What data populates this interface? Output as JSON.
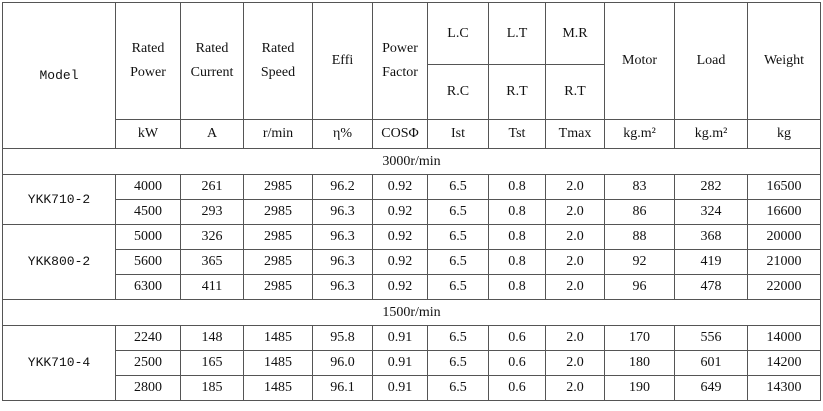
{
  "header": {
    "model": "Model",
    "tall": [
      [
        "Rated",
        "Power"
      ],
      [
        "Rated",
        "Current"
      ],
      [
        "Rated",
        "Speed"
      ],
      [
        "Effi"
      ],
      [
        "Power",
        "Factor"
      ]
    ],
    "split_top": [
      "L.C",
      "L.T",
      "M.R"
    ],
    "split_bottom": [
      "R.C",
      "R.T",
      "R.T"
    ],
    "tall2": [
      "Motor",
      "Load",
      "Weight"
    ],
    "units": [
      "kW",
      "A",
      "r/min",
      "η%",
      "COSΦ",
      "Ist",
      "Tst",
      "Tmax",
      "kg.m²",
      "kg.m²",
      "kg"
    ]
  },
  "sections": [
    {
      "speed": "3000r/min",
      "groups": [
        {
          "model": "YKK710-2",
          "rows": [
            [
              "4000",
              "261",
              "2985",
              "96.2",
              "0.92",
              "6.5",
              "0.8",
              "2.0",
              "83",
              "282",
              "16500"
            ],
            [
              "4500",
              "293",
              "2985",
              "96.3",
              "0.92",
              "6.5",
              "0.8",
              "2.0",
              "86",
              "324",
              "16600"
            ]
          ]
        },
        {
          "model": "YKK800-2",
          "rows": [
            [
              "5000",
              "326",
              "2985",
              "96.3",
              "0.92",
              "6.5",
              "0.8",
              "2.0",
              "88",
              "368",
              "20000"
            ],
            [
              "5600",
              "365",
              "2985",
              "96.3",
              "0.92",
              "6.5",
              "0.8",
              "2.0",
              "92",
              "419",
              "21000"
            ],
            [
              "6300",
              "411",
              "2985",
              "96.3",
              "0.92",
              "6.5",
              "0.8",
              "2.0",
              "96",
              "478",
              "22000"
            ]
          ]
        }
      ]
    },
    {
      "speed": "1500r/min",
      "groups": [
        {
          "model": "YKK710-4",
          "rows": [
            [
              "2240",
              "148",
              "1485",
              "95.8",
              "0.91",
              "6.5",
              "0.6",
              "2.0",
              "170",
              "556",
              "14000"
            ],
            [
              "2500",
              "165",
              "1485",
              "96.0",
              "0.91",
              "6.5",
              "0.6",
              "2.0",
              "180",
              "601",
              "14200"
            ],
            [
              "2800",
              "185",
              "1485",
              "96.1",
              "0.91",
              "6.5",
              "0.6",
              "2.0",
              "190",
              "649",
              "14300"
            ]
          ]
        }
      ]
    }
  ]
}
